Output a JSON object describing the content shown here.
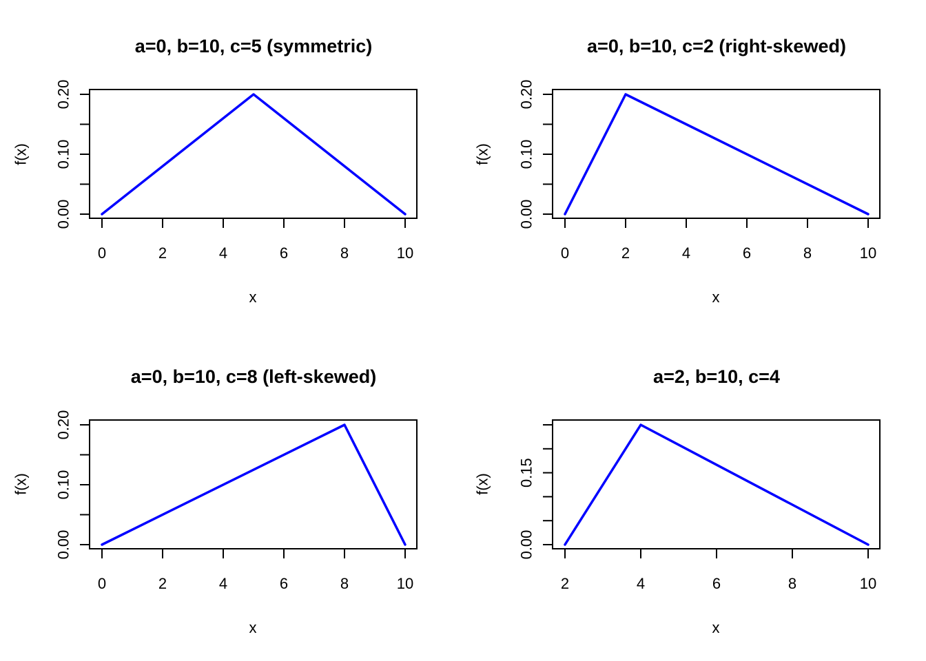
{
  "chart_data": [
    {
      "type": "line",
      "title": "a=0, b=10, c=5 (symmetric)",
      "xlabel": "x",
      "ylabel": "f(x)",
      "xlim": [
        0,
        10
      ],
      "ylim": [
        0,
        0.2
      ],
      "xticks": [
        0,
        2,
        4,
        6,
        8,
        10
      ],
      "xtick_labels": [
        "0",
        "2",
        "4",
        "6",
        "8",
        "10"
      ],
      "yticks": [
        0,
        0.05,
        0.1,
        0.15,
        0.2
      ],
      "ytick_labels": [
        "0.00",
        "",
        "0.10",
        "",
        "0.20"
      ],
      "series": [
        {
          "x": [
            0,
            5,
            10
          ],
          "y": [
            0,
            0.2,
            0
          ],
          "color": "#0000ff"
        }
      ]
    },
    {
      "type": "line",
      "title": "a=0, b=10, c=2 (right-skewed)",
      "xlabel": "x",
      "ylabel": "f(x)",
      "xlim": [
        0,
        10
      ],
      "ylim": [
        0,
        0.2
      ],
      "xticks": [
        0,
        2,
        4,
        6,
        8,
        10
      ],
      "xtick_labels": [
        "0",
        "2",
        "4",
        "6",
        "8",
        "10"
      ],
      "yticks": [
        0,
        0.05,
        0.1,
        0.15,
        0.2
      ],
      "ytick_labels": [
        "0.00",
        "",
        "0.10",
        "",
        "0.20"
      ],
      "series": [
        {
          "x": [
            0,
            2,
            10
          ],
          "y": [
            0,
            0.2,
            0
          ],
          "color": "#0000ff"
        }
      ]
    },
    {
      "type": "line",
      "title": "a=0, b=10, c=8 (left-skewed)",
      "xlabel": "x",
      "ylabel": "f(x)",
      "xlim": [
        0,
        10
      ],
      "ylim": [
        0,
        0.2
      ],
      "xticks": [
        0,
        2,
        4,
        6,
        8,
        10
      ],
      "xtick_labels": [
        "0",
        "2",
        "4",
        "6",
        "8",
        "10"
      ],
      "yticks": [
        0,
        0.05,
        0.1,
        0.15,
        0.2
      ],
      "ytick_labels": [
        "0.00",
        "",
        "0.10",
        "",
        "0.20"
      ],
      "series": [
        {
          "x": [
            0,
            8,
            10
          ],
          "y": [
            0,
            0.2,
            0
          ],
          "color": "#0000ff"
        }
      ]
    },
    {
      "type": "line",
      "title": "a=2, b=10, c=4",
      "xlabel": "x",
      "ylabel": "f(x)",
      "xlim": [
        2,
        10
      ],
      "ylim": [
        0,
        0.25
      ],
      "xticks": [
        2,
        4,
        6,
        8,
        10
      ],
      "xtick_labels": [
        "2",
        "4",
        "6",
        "8",
        "10"
      ],
      "yticks": [
        0,
        0.05,
        0.1,
        0.15,
        0.2,
        0.25
      ],
      "ytick_labels": [
        "0.00",
        "",
        "",
        "0.15",
        "",
        ""
      ],
      "series": [
        {
          "x": [
            2,
            4,
            10
          ],
          "y": [
            0,
            0.25,
            0
          ],
          "color": "#0000ff"
        }
      ]
    }
  ]
}
